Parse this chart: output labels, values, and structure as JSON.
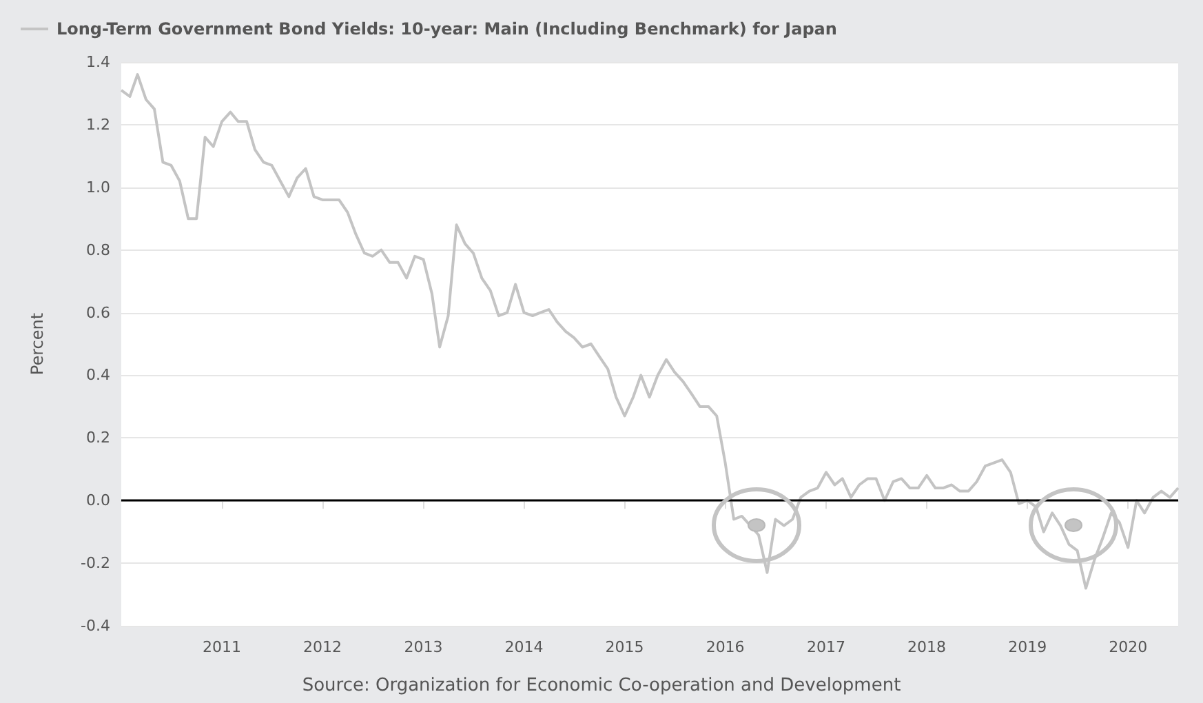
{
  "chart_data": {
    "type": "line",
    "ylabel": "Percent",
    "annotations": [
      "Source: Organization for Economic Co-operation and Development"
    ],
    "x": [
      "2010-01",
      "2010-02",
      "2010-03",
      "2010-04",
      "2010-05",
      "2010-06",
      "2010-07",
      "2010-08",
      "2010-09",
      "2010-10",
      "2010-11",
      "2010-12",
      "2011-01",
      "2011-02",
      "2011-03",
      "2011-04",
      "2011-05",
      "2011-06",
      "2011-07",
      "2011-08",
      "2011-09",
      "2011-10",
      "2011-11",
      "2011-12",
      "2012-01",
      "2012-02",
      "2012-03",
      "2012-04",
      "2012-05",
      "2012-06",
      "2012-07",
      "2012-08",
      "2012-09",
      "2012-10",
      "2012-11",
      "2012-12",
      "2013-01",
      "2013-02",
      "2013-03",
      "2013-04",
      "2013-05",
      "2013-06",
      "2013-07",
      "2013-08",
      "2013-09",
      "2013-10",
      "2013-11",
      "2013-12",
      "2014-01",
      "2014-02",
      "2014-03",
      "2014-04",
      "2014-05",
      "2014-06",
      "2014-07",
      "2014-08",
      "2014-09",
      "2014-10",
      "2014-11",
      "2014-12",
      "2015-01",
      "2015-02",
      "2015-03",
      "2015-04",
      "2015-05",
      "2015-06",
      "2015-07",
      "2015-08",
      "2015-09",
      "2015-10",
      "2015-11",
      "2015-12",
      "2016-01",
      "2016-02",
      "2016-03",
      "2016-04",
      "2016-05",
      "2016-06",
      "2016-07",
      "2016-08",
      "2016-09",
      "2016-10",
      "2016-11",
      "2016-12",
      "2017-01",
      "2017-02",
      "2017-03",
      "2017-04",
      "2017-05",
      "2017-06",
      "2017-07",
      "2017-08",
      "2017-09",
      "2017-10",
      "2017-11",
      "2017-12",
      "2018-01",
      "2018-02",
      "2018-03",
      "2018-04",
      "2018-05",
      "2018-06",
      "2018-07",
      "2018-08",
      "2018-09",
      "2018-10",
      "2018-11",
      "2018-12",
      "2019-01",
      "2019-02",
      "2019-03",
      "2019-04",
      "2019-05",
      "2019-06",
      "2019-07",
      "2019-08",
      "2019-09",
      "2019-10",
      "2019-11",
      "2019-12",
      "2020-01",
      "2020-02",
      "2020-03",
      "2020-04",
      "2020-05",
      "2020-06",
      "2020-07"
    ],
    "series": [
      {
        "name": "Long-Term Government Bond Yields: 10-year: Main (Including Benchmark) for Japan",
        "color": "#c4c4c4",
        "values": [
          1.31,
          1.29,
          1.36,
          1.28,
          1.25,
          1.08,
          1.07,
          1.02,
          0.9,
          0.9,
          1.16,
          1.13,
          1.21,
          1.24,
          1.21,
          1.21,
          1.12,
          1.08,
          1.07,
          1.02,
          0.97,
          1.03,
          1.06,
          0.97,
          0.96,
          0.96,
          0.96,
          0.92,
          0.85,
          0.79,
          0.78,
          0.8,
          0.76,
          0.76,
          0.71,
          0.78,
          0.77,
          0.66,
          0.49,
          0.59,
          0.88,
          0.82,
          0.79,
          0.71,
          0.67,
          0.59,
          0.6,
          0.69,
          0.6,
          0.59,
          0.6,
          0.61,
          0.57,
          0.54,
          0.52,
          0.49,
          0.5,
          0.46,
          0.42,
          0.33,
          0.27,
          0.33,
          0.4,
          0.33,
          0.4,
          0.45,
          0.41,
          0.38,
          0.34,
          0.3,
          0.3,
          0.27,
          0.12,
          -0.06,
          -0.05,
          -0.08,
          -0.11,
          -0.23,
          -0.06,
          -0.08,
          -0.06,
          0.01,
          0.03,
          0.04,
          0.09,
          0.05,
          0.07,
          0.01,
          0.05,
          0.07,
          0.07,
          0.0,
          0.06,
          0.07,
          0.04,
          0.04,
          0.08,
          0.04,
          0.04,
          0.05,
          0.03,
          0.03,
          0.06,
          0.11,
          0.12,
          0.13,
          0.09,
          -0.01,
          0.0,
          -0.02,
          -0.1,
          -0.04,
          -0.08,
          -0.14,
          -0.16,
          -0.28,
          -0.19,
          -0.12,
          -0.04,
          -0.07,
          -0.15,
          0.0,
          -0.04,
          0.01,
          0.03,
          0.01,
          0.04
        ]
      }
    ],
    "xlim": [
      "2010-01",
      "2020-07"
    ],
    "xticks": [
      "2011",
      "2012",
      "2013",
      "2014",
      "2015",
      "2016",
      "2017",
      "2018",
      "2019",
      "2020"
    ],
    "ylim": [
      -0.4,
      1.4
    ],
    "yticks": [
      {
        "value": -0.4,
        "label": "-0.4"
      },
      {
        "value": -0.2,
        "label": "-0.2"
      },
      {
        "value": 0,
        "label": "0.0"
      },
      {
        "value": 0.2,
        "label": "0.2"
      },
      {
        "value": 0.4,
        "label": "0.4"
      },
      {
        "value": 0.6,
        "label": "0.6"
      },
      {
        "value": 0.8,
        "label": "0.8"
      },
      {
        "value": 1.0,
        "label": "1.0"
      },
      {
        "value": 1.2,
        "label": "1.2"
      },
      {
        "value": 1.4,
        "label": "1.4"
      }
    ],
    "ref_lines": [
      {
        "axis": "y",
        "value": 0,
        "color": "#000000"
      }
    ],
    "grid": "y",
    "legend": "top left",
    "marker": "none",
    "line_style": "solid"
  }
}
